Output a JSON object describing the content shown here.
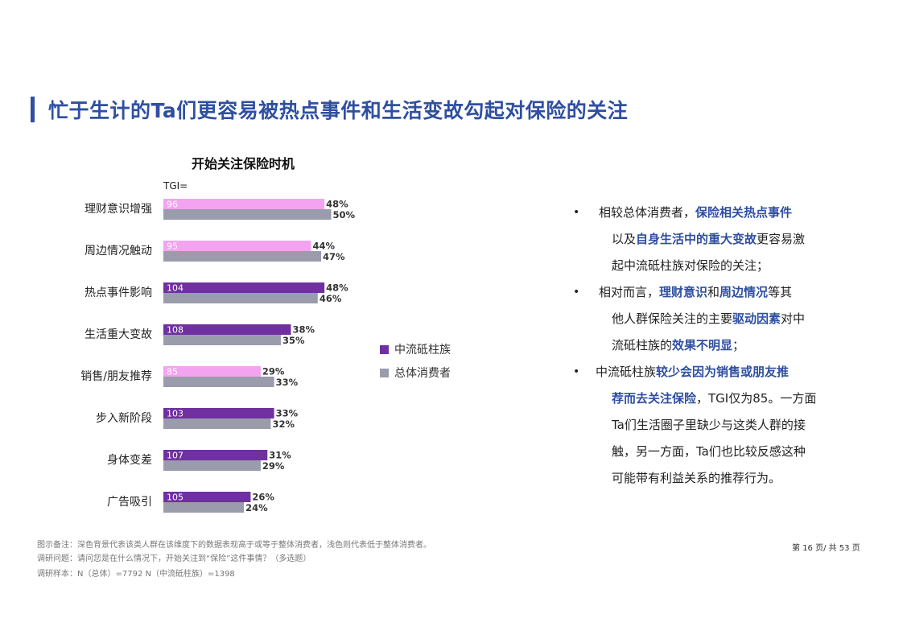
{
  "page_title": "忙于生计的Ta们更容易被热点事件和生活变故勾起对保险的关注",
  "chart_data": {
    "type": "bar",
    "title": "开始关注保险时机",
    "tgi_label": "TGI=",
    "categories": [
      "理财意识增强",
      "周边情况触动",
      "热点事件影响",
      "生活重大变故",
      "销售/朋友推荐",
      "步入新阶段",
      "身体变差",
      "广告吸引"
    ],
    "series": [
      {
        "name": "中流砥柱族",
        "values": [
          48,
          44,
          48,
          38,
          29,
          33,
          31,
          26
        ],
        "color": "#7030a0",
        "light_color": "#f3a3ef"
      },
      {
        "name": "总体消费者",
        "values": [
          50,
          47,
          46,
          35,
          33,
          32,
          29,
          24
        ],
        "color": "#9a9cab"
      }
    ],
    "tgi": [
      96,
      95,
      104,
      108,
      85,
      103,
      107,
      105
    ],
    "value_suffix": "%"
  },
  "legend": [
    {
      "label": "中流砥柱族",
      "color": "#7030a0"
    },
    {
      "label": "总体消费者",
      "color": "#9a9cab"
    }
  ],
  "notes": [
    {
      "lines": [
        [
          {
            "t": "相较总体消费者，"
          },
          {
            "t": "保险相关热点事件",
            "h": true
          }
        ],
        [
          {
            "t": "以及"
          },
          {
            "t": "自身生活中的重大变故",
            "h": true
          },
          {
            "t": "更容易激"
          }
        ],
        [
          {
            "t": "起中流砥柱族对保险的关注；"
          }
        ]
      ]
    },
    {
      "lines": [
        [
          {
            "t": "相对而言，"
          },
          {
            "t": "理财意识",
            "h": true
          },
          {
            "t": "和"
          },
          {
            "t": "周边情况",
            "h": true
          },
          {
            "t": "等其"
          }
        ],
        [
          {
            "t": "他人群保险关注的主要"
          },
          {
            "t": "驱动因素",
            "h": true
          },
          {
            "t": "对中"
          }
        ],
        [
          {
            "t": "流砥柱族的"
          },
          {
            "t": "效果不明显",
            "h": true
          },
          {
            "t": "；"
          }
        ]
      ]
    },
    {
      "lines": [
        [
          {
            "t": "中流砥柱族"
          },
          {
            "t": "较少会因为销售或朋友推",
            "h": true
          }
        ],
        [
          {
            "t": "荐而去关注保险",
            "h": true
          },
          {
            "t": "，TGI仅为85。一方面"
          }
        ],
        [
          {
            "t": "Ta们生活圈子里缺少与这类人群的接"
          }
        ],
        [
          {
            "t": "触，另一方面，Ta们也比较反感这种"
          }
        ],
        [
          {
            "t": "可能带有利益关系的推荐行为。"
          }
        ]
      ]
    }
  ],
  "bullet_symbol": "•",
  "footnotes": [
    "图示备注：深色背景代表该类人群在该维度下的数据表现高于或等于整体消费者，浅色则代表低于整体消费者。",
    "调研问题：请问您是在什么情况下，开始关注到“保险”这件事情？（多选题）",
    "调研样本：N（总体）=7792     N（中流砥柱族）=1398"
  ],
  "page_number": "第 16 页/ 共 53 页"
}
